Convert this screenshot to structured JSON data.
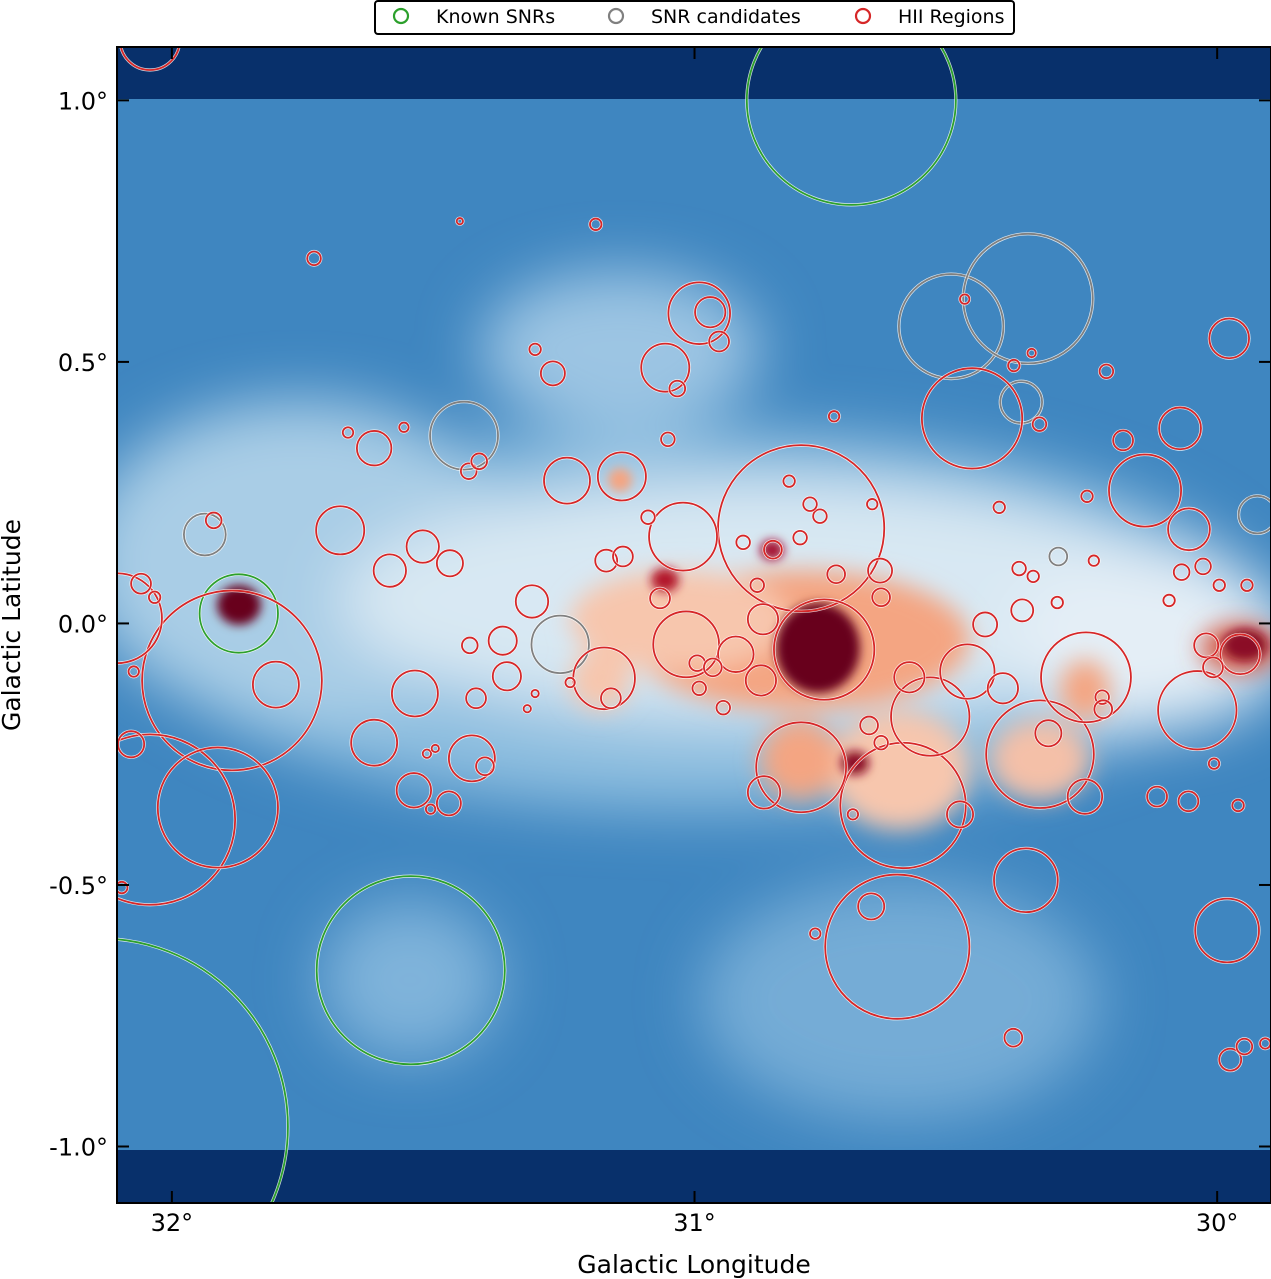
{
  "chart_data": {
    "type": "scatter",
    "title": "",
    "xlabel": "Galactic Longitude",
    "ylabel": "Galactic Latitude",
    "xlim": [
      32.105,
      29.897
    ],
    "ylim": [
      -1.108,
      1.102
    ],
    "map_data_lat_range": [
      -1.0,
      1.0
    ],
    "xticks": [
      {
        "value": 32,
        "label": "32°"
      },
      {
        "value": 31,
        "label": "31°"
      },
      {
        "value": 30,
        "label": "30°"
      }
    ],
    "yticks": [
      {
        "value": 1.0,
        "label": "1.0°"
      },
      {
        "value": 0.5,
        "label": "0.5°"
      },
      {
        "value": 0.0,
        "label": "0.0°"
      },
      {
        "value": -0.5,
        "label": "-0.5°"
      },
      {
        "value": -1.0,
        "label": "-1.0°"
      }
    ],
    "legend": {
      "placement": "top-center, above plot",
      "entries": [
        {
          "label": "Known SNRs",
          "color": "#2ca02c"
        },
        {
          "label": "SNR candidates",
          "color": "#808080"
        },
        {
          "label": "HII Regions",
          "color": "#d62728"
        }
      ]
    },
    "colors": {
      "map_low": "#08306b",
      "map_mid": "#4a90c6",
      "map_zero": "#f7f7f7",
      "map_high": "#67001f"
    },
    "series": [
      {
        "name": "Known SNRs",
        "color": "#2ca02c",
        "circles_l_b_r_deg": [
          [
            30.7,
            1.0,
            0.2
          ],
          [
            31.872,
            0.019,
            0.075
          ],
          [
            31.543,
            -0.663,
            0.18
          ],
          [
            32.138,
            -0.962,
            0.36
          ]
        ]
      },
      {
        "name": "SNR candidates",
        "color": "#808080",
        "circles_l_b_r_deg": [
          [
            30.509,
            0.568,
            0.1
          ],
          [
            30.362,
            0.621,
            0.124
          ],
          [
            30.375,
            0.423,
            0.04
          ],
          [
            31.441,
            0.359,
            0.065
          ],
          [
            31.937,
            0.17,
            0.04
          ],
          [
            31.257,
            -0.04,
            0.055
          ],
          [
            30.304,
            0.128,
            0.017
          ],
          [
            29.923,
            0.208,
            0.036
          ]
        ]
      },
      {
        "name": "HII Regions",
        "color": "#d62728",
        "circles_l_b_r_deg": [
          [
            30.796,
            0.182,
            0.159
          ],
          [
            31.885,
            -0.109,
            0.172
          ],
          [
            32.042,
            -0.375,
            0.163
          ],
          [
            31.912,
            -0.352,
            0.115
          ],
          [
            30.601,
            -0.348,
            0.12
          ],
          [
            30.612,
            -0.618,
            0.138
          ],
          [
            30.339,
            -0.25,
            0.103
          ],
          [
            30.251,
            -0.103,
            0.086
          ],
          [
            30.469,
            0.392,
            0.096
          ],
          [
            30.549,
            -0.178,
            0.075
          ],
          [
            30.796,
            -0.275,
            0.086
          ],
          [
            30.752,
            -0.05,
            0.096
          ],
          [
            30.991,
            0.593,
            0.059
          ],
          [
            30.138,
            0.254,
            0.069
          ],
          [
            30.038,
            -0.166,
            0.075
          ],
          [
            30.366,
            -0.491,
            0.061
          ],
          [
            29.981,
            -0.587,
            0.061
          ],
          [
            31.022,
            0.166,
            0.065
          ],
          [
            31.016,
            -0.04,
            0.063
          ],
          [
            31.173,
            -0.105,
            0.059
          ],
          [
            31.244,
            0.273,
            0.044
          ],
          [
            31.139,
            0.281,
            0.046
          ],
          [
            31.678,
            0.178,
            0.046
          ],
          [
            30.478,
            -0.092,
            0.052
          ],
          [
            30.071,
            0.373,
            0.04
          ],
          [
            29.977,
            0.545,
            0.038
          ],
          [
            30.054,
            0.18,
            0.04
          ],
          [
            31.056,
            0.489,
            0.046
          ],
          [
            31.535,
            -0.134,
            0.044
          ],
          [
            31.613,
            -0.228,
            0.044
          ],
          [
            31.426,
            -0.258,
            0.044
          ],
          [
            32.105,
            0.01,
            0.086
          ],
          [
            32.042,
            1.115,
            0.057
          ],
          [
            29.956,
            -0.059,
            0.038
          ],
          [
            30.253,
            -0.331,
            0.033
          ],
          [
            30.867,
            -0.323,
            0.031
          ],
          [
            31.537,
            -0.319,
            0.033
          ],
          [
            30.41,
            -0.124,
            0.029
          ],
          [
            30.323,
            -0.21,
            0.025
          ],
          [
            31.801,
            -0.117,
            0.044
          ],
          [
            31.613,
            0.335,
            0.033
          ],
          [
            31.52,
            0.147,
            0.031
          ],
          [
            31.583,
            0.101,
            0.031
          ],
          [
            31.468,
            0.115,
            0.025
          ],
          [
            31.311,
            0.042,
            0.031
          ],
          [
            31.367,
            -0.033,
            0.027
          ],
          [
            31.359,
            -0.101,
            0.027
          ],
          [
            30.97,
            0.595,
            0.029
          ],
          [
            30.953,
            0.539,
            0.019
          ],
          [
            30.662,
            -0.541,
            0.025
          ],
          [
            30.39,
            -0.792,
            0.017
          ],
          [
            29.975,
            -0.834,
            0.021
          ],
          [
            30.444,
            -0.002,
            0.023
          ],
          [
            30.645,
            0.101,
            0.023
          ],
          [
            30.729,
            0.094,
            0.017
          ],
          [
            30.873,
            -0.109,
            0.029
          ],
          [
            30.869,
            0.008,
            0.029
          ],
          [
            30.921,
            -0.059,
            0.034
          ],
          [
            31.47,
            -0.344,
            0.023
          ],
          [
            30.115,
            -0.331,
            0.019
          ],
          [
            30.055,
            -0.34,
            0.019
          ],
          [
            30.373,
            0.025,
            0.021
          ],
          [
            30.643,
            0.05,
            0.017
          ],
          [
            30.589,
            -0.103,
            0.029
          ],
          [
            30.492,
            -0.365,
            0.025
          ],
          [
            30.666,
            -0.195,
            0.017
          ],
          [
            30.18,
            0.35,
            0.019
          ],
          [
            30.212,
            0.482,
            0.013
          ],
          [
            31.271,
            0.478,
            0.023
          ],
          [
            31.728,
            0.698,
            0.013
          ],
          [
            31.189,
            0.763,
            0.011
          ],
          [
            31.449,
            0.769,
            0.006
          ],
          [
            31.305,
            0.524,
            0.011
          ],
          [
            31.92,
            0.197,
            0.015
          ],
          [
            32.059,
            0.076,
            0.019
          ],
          [
            32.078,
            -0.231,
            0.025
          ],
          [
            31.43,
            -0.042,
            0.015
          ],
          [
            31.418,
            -0.143,
            0.019
          ],
          [
            31.432,
            0.291,
            0.015
          ],
          [
            31.412,
            0.31,
            0.015
          ],
          [
            31.401,
            -0.273,
            0.017
          ],
          [
            31.16,
            -0.143,
            0.019
          ],
          [
            31.089,
            0.203,
            0.013
          ],
          [
            31.066,
            0.048,
            0.019
          ],
          [
            31.051,
            0.352,
            0.013
          ],
          [
            31.033,
            0.449,
            0.015
          ],
          [
            31.169,
            0.12,
            0.021
          ],
          [
            31.137,
            0.128,
            0.019
          ],
          [
            30.995,
            -0.076,
            0.015
          ],
          [
            30.991,
            -0.124,
            0.013
          ],
          [
            30.945,
            -0.161,
            0.013
          ],
          [
            30.965,
            -0.084,
            0.017
          ],
          [
            30.907,
            0.155,
            0.013
          ],
          [
            30.88,
            0.073,
            0.013
          ],
          [
            30.85,
            0.141,
            0.017
          ],
          [
            30.798,
            0.164,
            0.013
          ],
          [
            30.76,
            0.205,
            0.013
          ],
          [
            30.779,
            0.228,
            0.013
          ],
          [
            30.819,
            0.272,
            0.011
          ],
          [
            30.733,
            0.396,
            0.01
          ],
          [
            30.66,
            0.228,
            0.01
          ],
          [
            30.643,
            -0.228,
            0.013
          ],
          [
            30.417,
            0.222,
            0.011
          ],
          [
            30.389,
            0.493,
            0.011
          ],
          [
            30.34,
            0.381,
            0.013
          ],
          [
            30.379,
            0.105,
            0.013
          ],
          [
            30.352,
            0.09,
            0.011
          ],
          [
            30.306,
            0.04,
            0.011
          ],
          [
            30.249,
            0.243,
            0.011
          ],
          [
            30.236,
            0.12,
            0.01
          ],
          [
            30.092,
            0.044,
            0.011
          ],
          [
            30.068,
            0.098,
            0.015
          ],
          [
            30.027,
            0.109,
            0.015
          ],
          [
            29.996,
            0.073,
            0.011
          ],
          [
            29.943,
            0.073,
            0.011
          ],
          [
            30.021,
            -0.042,
            0.023
          ],
          [
            30.008,
            -0.084,
            0.019
          ],
          [
            30.22,
            -0.141,
            0.013
          ],
          [
            30.218,
            -0.164,
            0.017
          ],
          [
            30.006,
            -0.268,
            0.01
          ],
          [
            29.96,
            -0.348,
            0.011
          ],
          [
            29.948,
            -0.809,
            0.015
          ],
          [
            29.908,
            -0.803,
            0.01
          ],
          [
            30.769,
            -0.593,
            0.01
          ],
          [
            30.697,
            -0.365,
            0.01
          ],
          [
            31.512,
            -0.249,
            0.008
          ],
          [
            31.663,
            0.365,
            0.01
          ],
          [
            32.033,
            0.05,
            0.011
          ],
          [
            32.073,
            -0.092,
            0.01
          ],
          [
            32.096,
            -0.505,
            0.011
          ],
          [
            31.556,
            0.375,
            0.009
          ],
          [
            31.496,
            -0.239,
            0.007
          ],
          [
            31.505,
            -0.355,
            0.009
          ],
          [
            31.32,
            -0.163,
            0.007
          ],
          [
            31.305,
            -0.134,
            0.007
          ],
          [
            31.238,
            -0.113,
            0.009
          ],
          [
            30.483,
            0.62,
            0.009
          ],
          [
            30.355,
            0.517,
            0.008
          ]
        ]
      }
    ]
  }
}
